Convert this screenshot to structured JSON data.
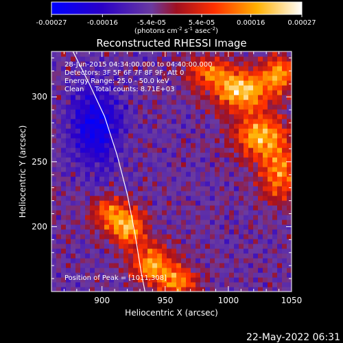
{
  "chart_data": {
    "type": "heatmap",
    "title": "Reconstructed RHESSI Image",
    "xlabel": "Heliocentric X (arcsec)",
    "ylabel": "Heliocentric Y (arcsec)",
    "xlim": [
      860,
      1050
    ],
    "ylim": [
      150,
      335
    ],
    "x_ticks": [
      900,
      950,
      1000,
      1050
    ],
    "y_ticks": [
      200,
      250,
      300
    ],
    "colorbar": {
      "range": [
        -0.00027,
        0.00027
      ],
      "ticks": [
        -0.00027,
        -0.00016,
        -5.4e-05,
        5.4e-05,
        0.00016,
        0.00027
      ],
      "tick_labels": [
        "-0.00027",
        "-0.00016",
        "-5.4e-05",
        "5.4e-05",
        "0.00016",
        "0.00027"
      ],
      "colors": [
        "#0000ff",
        "#2a00c8",
        "#6a3aa0",
        "#a01020",
        "#ff3000",
        "#ffb000",
        "#ffffff"
      ]
    },
    "annotations": [
      "28-Jun-2015 04:34:00.000 to 04:40:00.000",
      "Detectors: 3F 5F 6F 7F 8F 9F, Att 0",
      "Energy Range: 25.0 - 50.0 keV",
      "Clean     Total counts: 8.71E+03"
    ],
    "peak_label": "Position of Peak = [1011,308]",
    "peak": [
      1011,
      308
    ],
    "limb_curve": [
      [
        877,
        335
      ],
      [
        890,
        310
      ],
      [
        902,
        285
      ],
      [
        912,
        255
      ],
      [
        920,
        225
      ],
      [
        926,
        195
      ],
      [
        931,
        165
      ],
      [
        934,
        150
      ]
    ],
    "emission_regions": [
      {
        "x": 1010,
        "y": 305,
        "sx": 16,
        "sy": 10,
        "amp": 0.00027
      },
      {
        "x": 1025,
        "y": 270,
        "sx": 15,
        "sy": 12,
        "amp": 0.00024
      },
      {
        "x": 1040,
        "y": 240,
        "sx": 10,
        "sy": 14,
        "amp": 0.0002
      },
      {
        "x": 985,
        "y": 320,
        "sx": 14,
        "sy": 8,
        "amp": 0.00016
      },
      {
        "x": 1040,
        "y": 318,
        "sx": 10,
        "sy": 10,
        "amp": 0.0002
      },
      {
        "x": 920,
        "y": 200,
        "sx": 10,
        "sy": 10,
        "amp": 0.00024
      },
      {
        "x": 905,
        "y": 212,
        "sx": 9,
        "sy": 9,
        "amp": 0.00016
      },
      {
        "x": 940,
        "y": 172,
        "sx": 12,
        "sy": 10,
        "amp": 0.00022
      },
      {
        "x": 960,
        "y": 158,
        "sx": 12,
        "sy": 8,
        "amp": 0.00018
      },
      {
        "x": 895,
        "y": 278,
        "sx": 14,
        "sy": 22,
        "amp": -0.00018
      }
    ],
    "grid": false,
    "legend": "none"
  },
  "footer": {
    "timestamp": "22-May-2022 06:31"
  },
  "colorbar_units": {
    "main": "(photons cm",
    "exp1": "-2",
    "s": " s",
    "exp2": "-1",
    "asec": " asec",
    "exp3": "-2",
    "close": ")"
  }
}
